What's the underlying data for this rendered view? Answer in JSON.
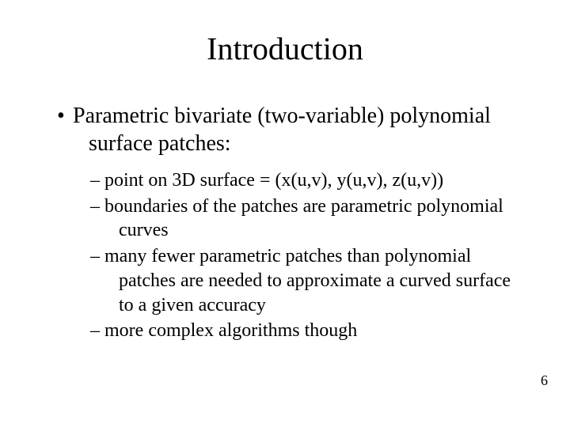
{
  "slide": {
    "title": "Introduction",
    "background_color": "#ffffff",
    "text_color": "#000000",
    "title_fontsize": 40,
    "body_fontsize": 28,
    "sub_fontsize": 24,
    "font_family": "Times New Roman",
    "bullets": [
      {
        "marker": "•",
        "text": "Parametric bivariate (two-variable) polynomial surface patches:",
        "children": [
          {
            "marker": "–",
            "text": "point on 3D surface = (x(u,v), y(u,v), z(u,v))"
          },
          {
            "marker": "–",
            "text": "boundaries of the patches are parametric polynomial curves"
          },
          {
            "marker": "–",
            "text": "many fewer parametric patches than polynomial patches are needed to approximate a curved surface to a given accuracy"
          },
          {
            "marker": "–",
            "text": "more complex algorithms though"
          }
        ]
      }
    ],
    "page_number": "6"
  }
}
